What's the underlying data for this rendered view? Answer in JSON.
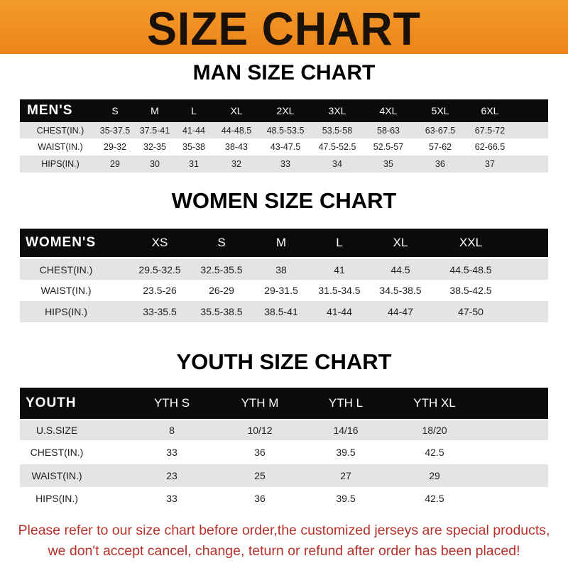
{
  "banner": {
    "title": "SIZE CHART",
    "color": "#ef8a1f"
  },
  "men": {
    "title": "MAN SIZE CHART",
    "header": [
      "MEN'S",
      "S",
      "M",
      "L",
      "XL",
      "2XL",
      "3XL",
      "4XL",
      "5XL",
      "6XL"
    ],
    "rows": [
      [
        "CHEST(IN.)",
        "35-37.5",
        "37.5-41",
        "41-44",
        "44-48.5",
        "48.5-53.5",
        "53.5-58",
        "58-63",
        "63-67.5",
        "67.5-72"
      ],
      [
        "WAIST(IN.)",
        "29-32",
        "32-35",
        "35-38",
        "38-43",
        "43-47.5",
        "47.5-52.5",
        "52.5-57",
        "57-62",
        "62-66.5"
      ],
      [
        "HIPS(IN.)",
        "29",
        "30",
        "31",
        "32",
        "33",
        "34",
        "35",
        "36",
        "37"
      ]
    ]
  },
  "women": {
    "title": "WOMEN SIZE CHART",
    "header": [
      "WOMEN'S",
      "XS",
      "S",
      "M",
      "L",
      "XL",
      "XXL"
    ],
    "rows": [
      [
        "CHEST(IN.)",
        "29.5-32.5",
        "32.5-35.5",
        "38",
        "41",
        "44.5",
        "44.5-48.5"
      ],
      [
        "WAIST(IN.)",
        "23.5-26",
        "26-29",
        "29-31.5",
        "31.5-34.5",
        "34.5-38.5",
        "38.5-42.5"
      ],
      [
        "HIPS(IN.)",
        "33-35.5",
        "35.5-38.5",
        "38.5-41",
        "41-44",
        "44-47",
        "47-50"
      ]
    ]
  },
  "youth": {
    "title": "YOUTH SIZE CHART",
    "header": [
      "YOUTH",
      "YTH S",
      "YTH M",
      "YTH L",
      "YTH XL"
    ],
    "rows": [
      [
        "U.S.SIZE",
        "8",
        "10/12",
        "14/16",
        "18/20"
      ],
      [
        "CHEST(IN.)",
        "33",
        "36",
        "39.5",
        "42.5"
      ],
      [
        "WAIST(IN.)",
        "23",
        "25",
        "27",
        "29"
      ],
      [
        "HIPS(IN.)",
        "33",
        "36",
        "39.5",
        "42.5"
      ]
    ]
  },
  "footer": {
    "line1": "Please refer to our size chart before order,the customized jerseys are special products,",
    "line2": "we don't accept cancel, change, teturn or refund after order has been placed!",
    "color": "#b8302a"
  }
}
